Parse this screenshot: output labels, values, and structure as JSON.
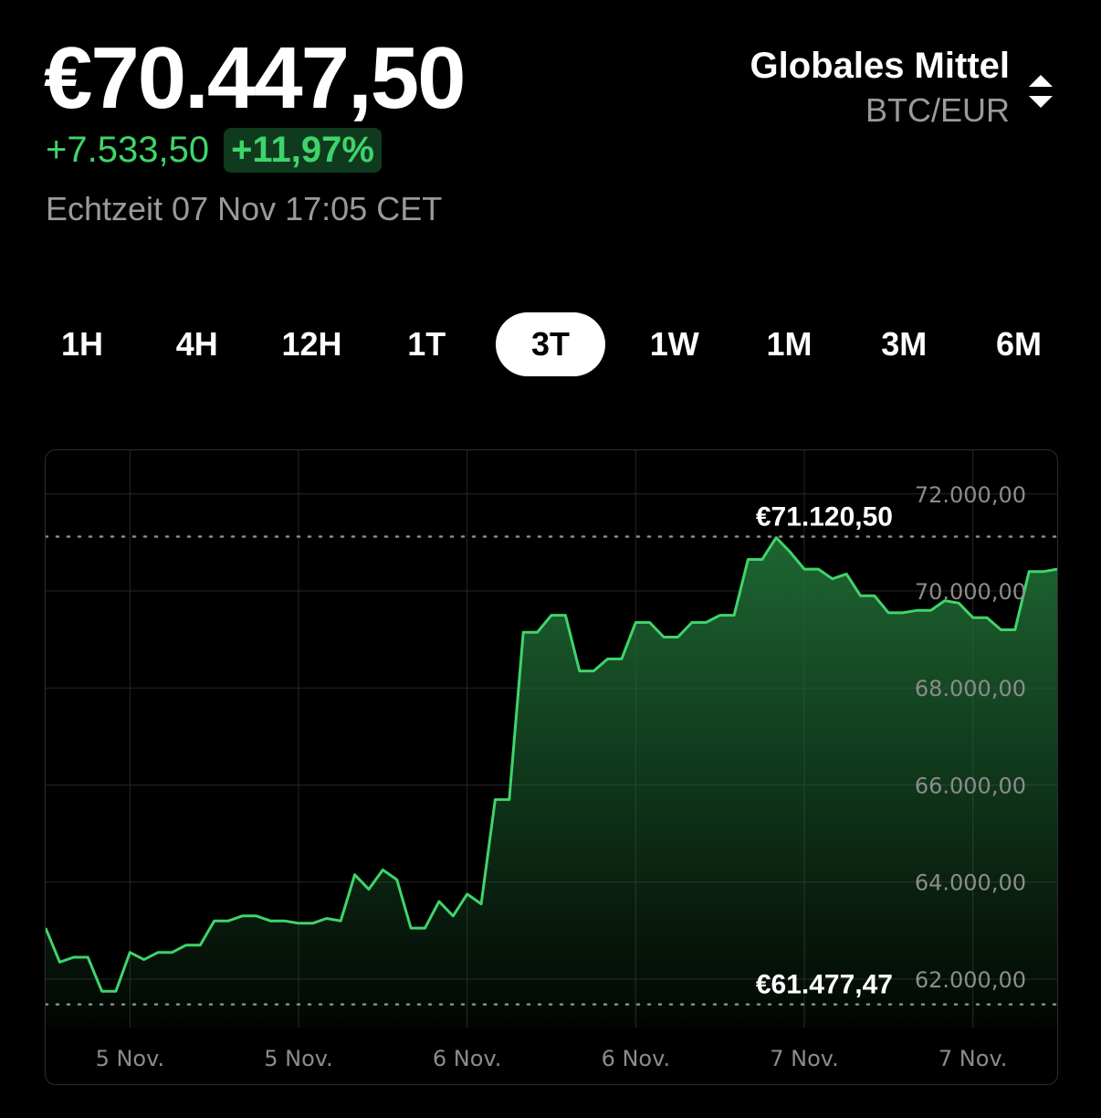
{
  "header": {
    "price": "€70.447,50",
    "change_abs": "+7.533,50",
    "change_pct": "+11,97%",
    "realtime": "Echtzeit 07 Nov 17:05 CET"
  },
  "market": {
    "name": "Globales Mittel",
    "pair": "BTC/EUR",
    "sort_icon": "sort-up-down-icon"
  },
  "tabs": [
    {
      "label": "1H",
      "active": false
    },
    {
      "label": "4H",
      "active": false
    },
    {
      "label": "12H",
      "active": false
    },
    {
      "label": "1T",
      "active": false
    },
    {
      "label": "3T",
      "active": true
    },
    {
      "label": "1W",
      "active": false
    },
    {
      "label": "1M",
      "active": false
    },
    {
      "label": "3M",
      "active": false
    },
    {
      "label": "6M",
      "active": false
    }
  ],
  "colors": {
    "line": "#3fd46a",
    "fill_top": "#1f6b34",
    "grid": "#262626",
    "dotted": "#8c8c8c"
  },
  "chart_data": {
    "type": "area",
    "ylim": [
      61000,
      72900
    ],
    "yticks": [
      62000,
      64000,
      66000,
      68000,
      70000,
      72000
    ],
    "ytick_labels": [
      "62.000,00",
      "64.000,00",
      "66.000,00",
      "68.000,00",
      "70.000,00",
      "72.000,00"
    ],
    "x_range": [
      0,
      72
    ],
    "xticks": [
      6,
      18,
      30,
      42,
      54,
      66
    ],
    "xtick_labels": [
      "5 Nov.",
      "5 Nov.",
      "6 Nov.",
      "6 Nov.",
      "7 Nov.",
      "7 Nov."
    ],
    "max_label": "€71.120,50",
    "min_label": "€61.477,47",
    "max_value": 71120.5,
    "min_value": 61477.47,
    "grid": true,
    "points": [
      [
        0,
        63050
      ],
      [
        1,
        62350
      ],
      [
        2,
        62450
      ],
      [
        3,
        62450
      ],
      [
        4,
        61750
      ],
      [
        5,
        61750
      ],
      [
        6,
        62550
      ],
      [
        7,
        62400
      ],
      [
        8,
        62550
      ],
      [
        9,
        62550
      ],
      [
        10,
        62700
      ],
      [
        11,
        62700
      ],
      [
        12,
        63200
      ],
      [
        13,
        63200
      ],
      [
        14,
        63300
      ],
      [
        15,
        63300
      ],
      [
        16,
        63200
      ],
      [
        17,
        63200
      ],
      [
        18,
        63150
      ],
      [
        19,
        63150
      ],
      [
        20,
        63250
      ],
      [
        21,
        63200
      ],
      [
        22,
        64150
      ],
      [
        23,
        63850
      ],
      [
        24,
        64250
      ],
      [
        25,
        64050
      ],
      [
        26,
        63050
      ],
      [
        27,
        63050
      ],
      [
        28,
        63600
      ],
      [
        29,
        63300
      ],
      [
        30,
        63750
      ],
      [
        31,
        63550
      ],
      [
        32,
        65700
      ],
      [
        33,
        65700
      ],
      [
        34,
        69150
      ],
      [
        35,
        69150
      ],
      [
        36,
        69500
      ],
      [
        37,
        69500
      ],
      [
        38,
        68350
      ],
      [
        39,
        68350
      ],
      [
        40,
        68600
      ],
      [
        41,
        68600
      ],
      [
        42,
        69350
      ],
      [
        43,
        69350
      ],
      [
        44,
        69050
      ],
      [
        45,
        69050
      ],
      [
        46,
        69350
      ],
      [
        47,
        69350
      ],
      [
        48,
        69500
      ],
      [
        49,
        69500
      ],
      [
        50,
        70650
      ],
      [
        51,
        70650
      ],
      [
        52,
        71100
      ],
      [
        53,
        70800
      ],
      [
        54,
        70450
      ],
      [
        55,
        70450
      ],
      [
        56,
        70250
      ],
      [
        57,
        70350
      ],
      [
        58,
        69900
      ],
      [
        59,
        69900
      ],
      [
        60,
        69550
      ],
      [
        61,
        69550
      ],
      [
        62,
        69600
      ],
      [
        63,
        69600
      ],
      [
        64,
        69800
      ],
      [
        65,
        69750
      ],
      [
        66,
        69450
      ],
      [
        67,
        69450
      ],
      [
        68,
        69200
      ],
      [
        69,
        69200
      ],
      [
        70,
        70400
      ],
      [
        71,
        70400
      ],
      [
        72,
        70450
      ]
    ]
  }
}
